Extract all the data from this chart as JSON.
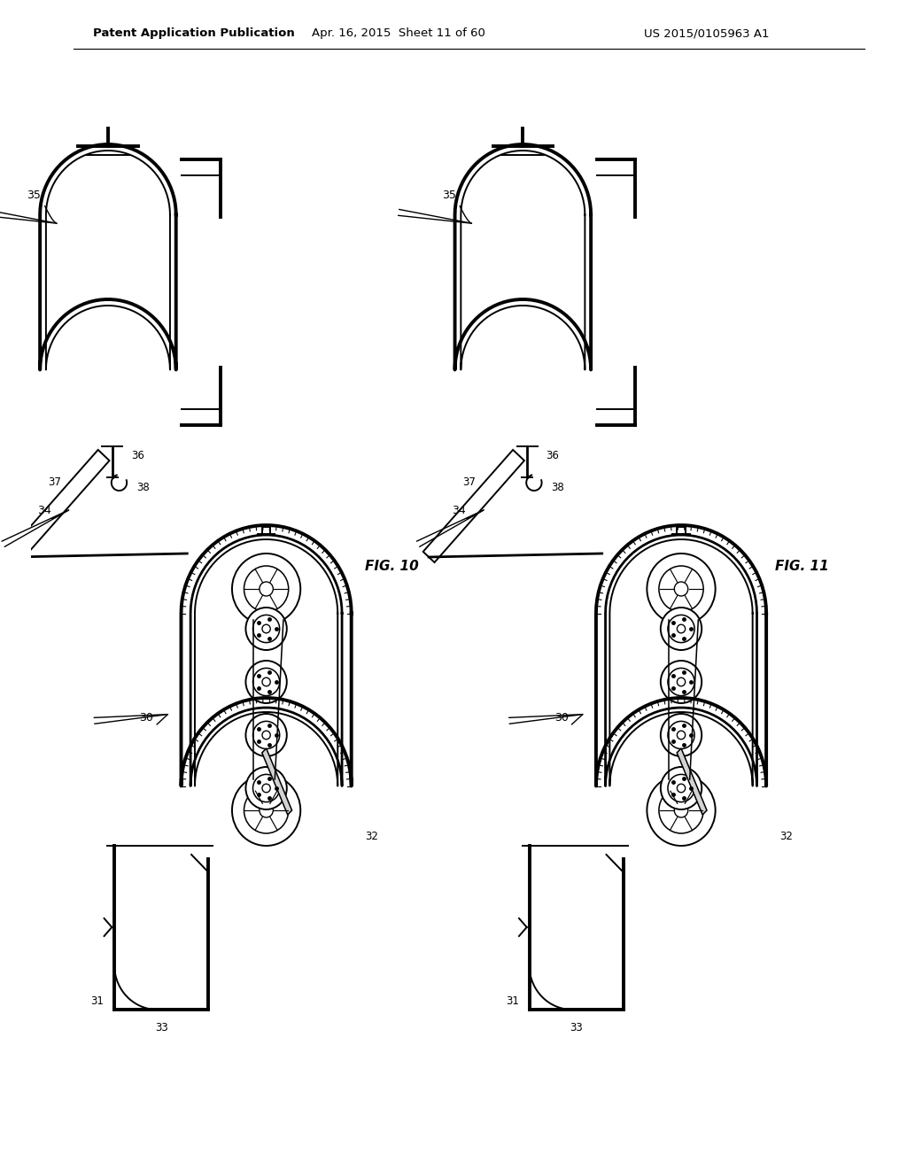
{
  "bg_color": "#ffffff",
  "line_color": "#000000",
  "header_text": "Patent Application Publication",
  "header_date": "Apr. 16, 2015  Sheet 11 of 60",
  "header_patent": "US 2015/0105963 A1",
  "fig10_label": "FIG. 10",
  "fig11_label": "FIG. 11",
  "lw": 1.4,
  "tlw": 2.8,
  "mlw": 2.0
}
